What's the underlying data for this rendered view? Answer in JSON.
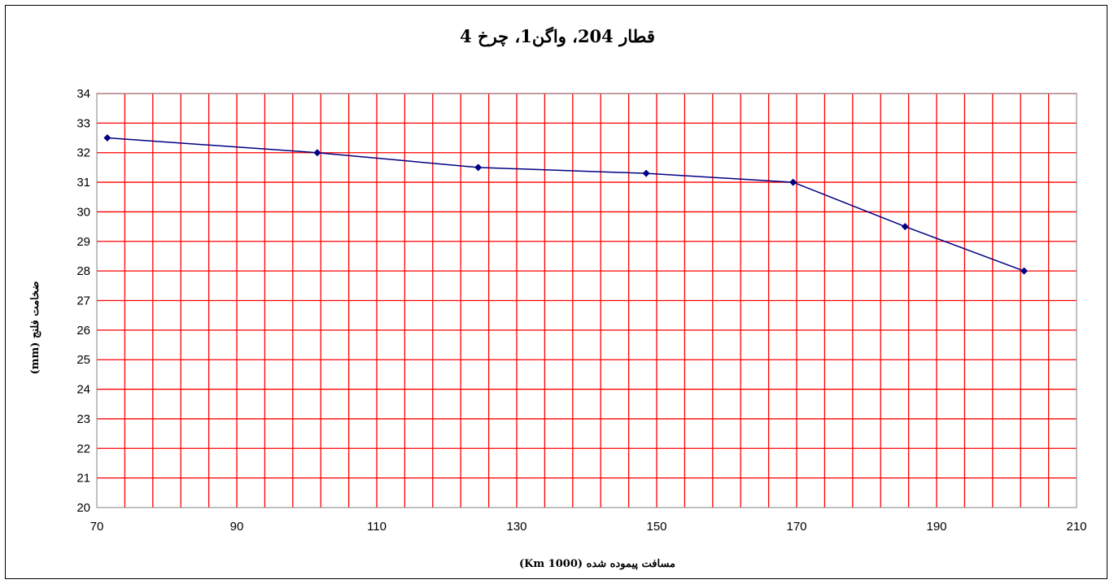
{
  "chart_data": {
    "type": "line",
    "title": "قطار 204، واگن1، چرخ 4",
    "xlabel": "مسافت پیموده شده (1000 Km)",
    "ylabel": "ضخامت فلنج (mm)",
    "xlim": [
      70,
      210
    ],
    "ylim": [
      20,
      34
    ],
    "x_ticks": [
      70,
      90,
      110,
      130,
      150,
      170,
      190,
      210
    ],
    "y_ticks": [
      20,
      21,
      22,
      23,
      24,
      25,
      26,
      27,
      28,
      29,
      30,
      31,
      32,
      33,
      34
    ],
    "x_minor_step": 4,
    "grid": true,
    "grid_color": "#ff0000",
    "series": [
      {
        "color": "#000080",
        "x": [
          71.5,
          101.5,
          124.5,
          148.5,
          169.5,
          185.5,
          202.5
        ],
        "y": [
          32.5,
          32.0,
          31.5,
          31.3,
          31.0,
          29.5,
          28.0
        ]
      }
    ]
  }
}
